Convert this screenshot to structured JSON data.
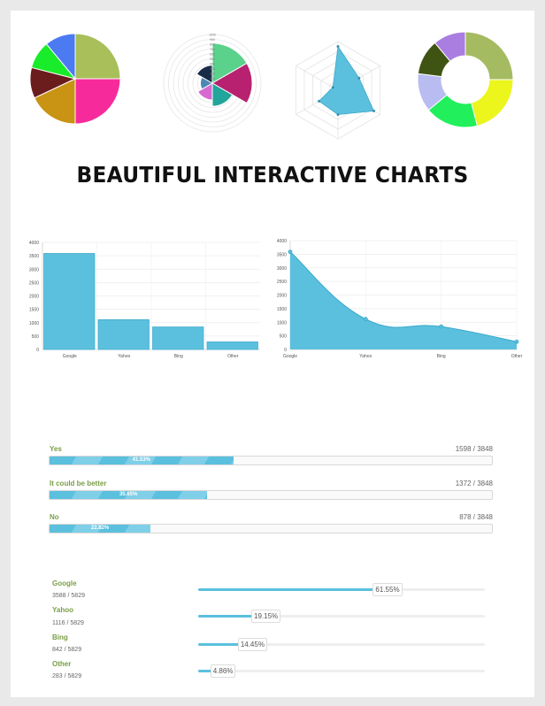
{
  "headline": "BEAUTIFUL INTERACTIVE CHARTS",
  "chart_data": [
    {
      "type": "pie",
      "slices": [
        {
          "value": 25,
          "color": "#a8bf5a"
        },
        {
          "value": 25,
          "color": "#f72a9c"
        },
        {
          "value": 18,
          "color": "#c99313"
        },
        {
          "value": 11,
          "color": "#6b1d1d"
        },
        {
          "value": 10,
          "color": "#19ec2a"
        },
        {
          "value": 11,
          "color": "#4b7af2"
        }
      ]
    },
    {
      "type": "polar-area",
      "slices": [
        {
          "value": 1,
          "color": "#5ad28c"
        },
        {
          "value": 1,
          "color": "#b82170"
        },
        {
          "value": 0.58,
          "color": "#22a59a"
        },
        {
          "value": 0.42,
          "color": "#d66ad2"
        },
        {
          "value": 0.3,
          "color": "#4c88b6"
        },
        {
          "value": 0.45,
          "color": "#182c48"
        }
      ],
      "tick_labels": [
        "1000",
        "900",
        "800",
        "700",
        "600",
        "500",
        "400",
        "300",
        "200",
        "100"
      ]
    },
    {
      "type": "radar",
      "values": [
        0.9,
        0.5,
        0.85,
        0.5,
        0.45,
        0.12
      ],
      "fill": "#5bc0de",
      "grid_levels": 5
    },
    {
      "type": "doughnut",
      "slices": [
        {
          "value": 25,
          "color": "#a5bb61"
        },
        {
          "value": 21,
          "color": "#ecf51c"
        },
        {
          "value": 18,
          "color": "#21f05c"
        },
        {
          "value": 13,
          "color": "#b9bcf0"
        },
        {
          "value": 12,
          "color": "#3f5412"
        },
        {
          "value": 11,
          "color": "#a97ee0"
        }
      ]
    },
    {
      "type": "bar",
      "categories": [
        "Google",
        "Yahoo",
        "Bing",
        "Other"
      ],
      "values": [
        3588,
        1116,
        842,
        283
      ],
      "ylim": [
        0,
        4000
      ],
      "yticks": [
        "0",
        "500",
        "1000",
        "1500",
        "2000",
        "2500",
        "3000",
        "3500",
        "4000"
      ]
    },
    {
      "type": "area",
      "categories": [
        "Google",
        "Yahoo",
        "Bing",
        "Other"
      ],
      "values": [
        3588,
        1116,
        842,
        283
      ],
      "ylim": [
        0,
        4000
      ],
      "yticks": [
        "0",
        "500",
        "1000",
        "1500",
        "2000",
        "2500",
        "3000",
        "3500",
        "4000"
      ]
    }
  ],
  "survey": [
    {
      "label": "Yes",
      "count": "1598 / 3848",
      "percent_text": "41.53%",
      "fraction": 0.4153
    },
    {
      "label": "It could be better",
      "count": "1372 / 3848",
      "percent_text": "35.65%",
      "fraction": 0.3565
    },
    {
      "label": "No",
      "count": "878 / 3848",
      "percent_text": "22.82%",
      "fraction": 0.2282
    }
  ],
  "engines": [
    {
      "name": "Google",
      "count": "3588 / 5829",
      "percent_text": "61.55%",
      "fraction": 0.6155
    },
    {
      "name": "Yahoo",
      "count": "1116 / 5829",
      "percent_text": "19.15%",
      "fraction": 0.1915
    },
    {
      "name": "Bing",
      "count": "842 / 5829",
      "percent_text": "14.45%",
      "fraction": 0.1445
    },
    {
      "name": "Other",
      "count": "283 / 5829",
      "percent_text": "4.86%",
      "fraction": 0.0486
    }
  ]
}
